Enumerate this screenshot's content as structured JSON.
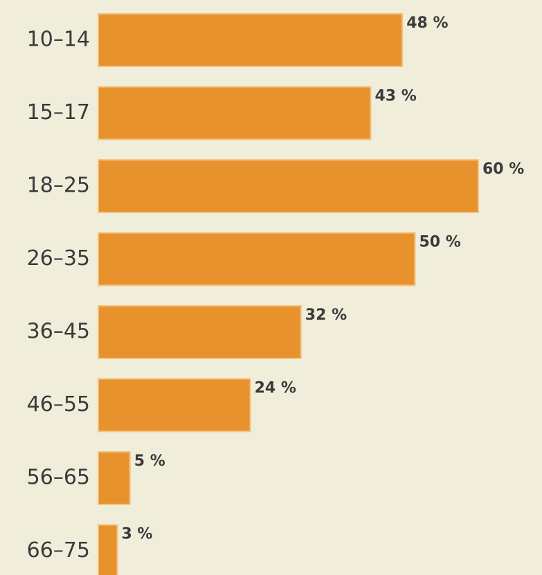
{
  "chart_data": {
    "type": "bar",
    "orientation": "horizontal",
    "categories": [
      "10–14",
      "15–17",
      "18–25",
      "26–35",
      "36–45",
      "46–55",
      "56–65",
      "66–75"
    ],
    "values": [
      48,
      43,
      60,
      50,
      32,
      24,
      5,
      3
    ],
    "value_labels": [
      "48 %",
      "43 %",
      "60 %",
      "50 %",
      "32 %",
      "24 %",
      "5 %",
      "3 %"
    ],
    "color": "#e8922e"
  }
}
